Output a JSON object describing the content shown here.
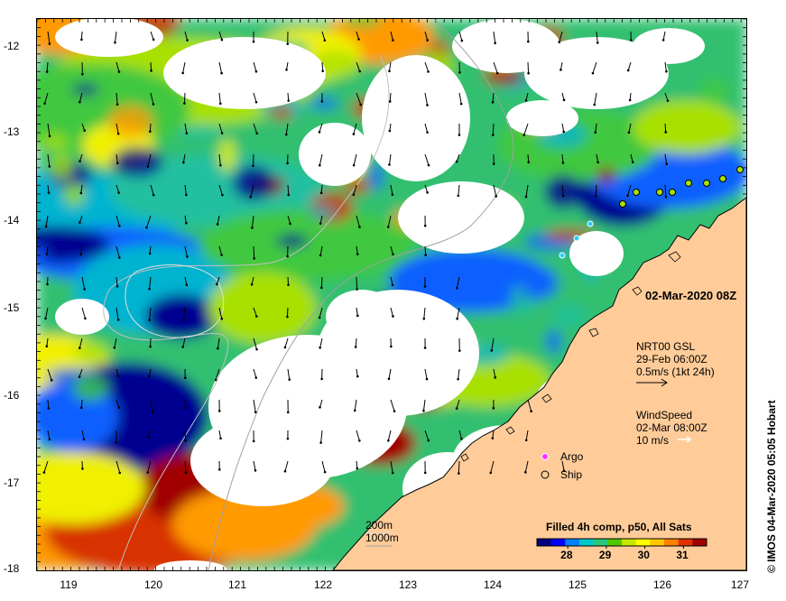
{
  "axes": {
    "lat_ticks": [
      "-12",
      "-13",
      "-14",
      "-15",
      "-16",
      "-17",
      "-18"
    ],
    "lon_ticks": [
      "119",
      "120",
      "121",
      "122",
      "123",
      "124",
      "125",
      "126",
      "127"
    ],
    "lat_range": [
      -18,
      -11.75
    ],
    "lon_range": [
      118.65,
      127.0
    ]
  },
  "date_stamp": "02-Mar-2020 08Z",
  "currents_legend": {
    "line1": "NRT00 GSL",
    "line2": "29-Feb 06:00Z",
    "line3": "0.5m/s (1kt 24h)"
  },
  "wind_legend": {
    "line1": "WindSpeed",
    "line2": "02-Mar 08:00Z",
    "line3": "10 m/s"
  },
  "symbols_legend": {
    "argo": "Argo",
    "ship": "Ship"
  },
  "bathymetry_legend": {
    "contour1": "200m",
    "contour2": "1000m"
  },
  "colorbar": {
    "title": "Filled 4h comp, p50, All Sats",
    "ticks": [
      "28",
      "29",
      "30",
      "31"
    ],
    "tick_values": [
      28,
      29,
      30,
      31
    ],
    "range": [
      27.2,
      31.6
    ],
    "colors": [
      "#00007f",
      "#0000ff",
      "#0080ff",
      "#00c8c8",
      "#28c878",
      "#50c800",
      "#c8e600",
      "#ffff00",
      "#ffc800",
      "#ff8000",
      "#e03000",
      "#a00000"
    ]
  },
  "credit": "© IMOS 04-Mar-2020 05:05 Hobart",
  "colors": {
    "land": "#ffcc99",
    "coast": "#000000",
    "bathy": "#a0a0a0",
    "argo": "#ff33ff",
    "ship": "#000000"
  }
}
